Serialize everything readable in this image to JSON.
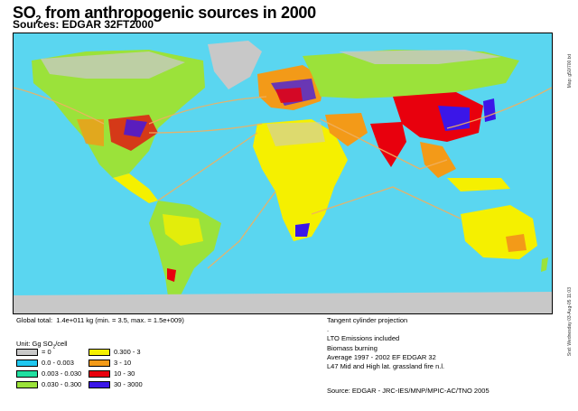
{
  "header": {
    "title_prefix": "SO",
    "title_sub": "2",
    "title_suffix": " from anthropogenic sources in 2000",
    "subtitle": "Sources: EDGAR 32FT2000"
  },
  "side_notes": {
    "top": "Map: g50/700.txt",
    "bottom": "Snd: Wednesday 03-Aug-05 11:03"
  },
  "footer": {
    "global_label": "Global total:",
    "global_value": "1.4e+011 kg (min. = 3.5, max. = 1.5e+009)",
    "unit_label": "Unit: Gg SO",
    "unit_sub": "2",
    "unit_suffix": "/cell",
    "projection": "Tangent cylinder projection",
    "dot": ".",
    "notes": [
      "LTO Emissions included",
      "Biomass burning",
      "Average 1997 - 2002 EF EDGAR 32",
      "L47 Mid and High lat. grassland fire n.l."
    ],
    "source": "Source: EDGAR - JRC-IES/MNP/MPIC-AC/TNO 2005"
  },
  "legend": [
    {
      "label": "= 0",
      "color": "#c8c8c8"
    },
    {
      "label": "0.0 - 0.003",
      "color": "#1fc8f0"
    },
    {
      "label": "0.003 - 0.030",
      "color": "#20e0a0"
    },
    {
      "label": "0.030 - 0.300",
      "color": "#9be23a"
    },
    {
      "label": "0.300 - 3",
      "color": "#f5f000"
    },
    {
      "label": "3 - 10",
      "color": "#f39a18"
    },
    {
      "label": "10 - 30",
      "color": "#e8000d"
    },
    {
      "label": "30 - 3000",
      "color": "#3b16e8"
    }
  ],
  "colors": {
    "ocean": "#5ad6f0",
    "land_base": "#9be23a",
    "ship_lanes": "#f0b060",
    "ice": "#c8c8c8"
  }
}
